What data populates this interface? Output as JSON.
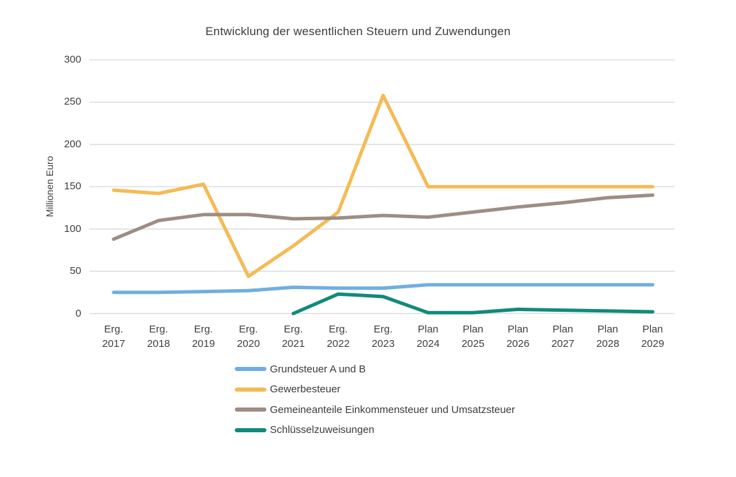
{
  "chart_data": {
    "type": "line",
    "title": "Entwicklung der wesentlichen Steuern und Zuwendungen",
    "xlabel": "",
    "ylabel": "Millionen Euro",
    "ylim": [
      0,
      300
    ],
    "ytick_step": 50,
    "yticks": [
      0,
      50,
      100,
      150,
      200,
      250,
      300
    ],
    "grid": "horizontal-only",
    "gridline_color": "#d9d9d9",
    "legend_position": "bottom-left",
    "categories": [
      "Erg. 2017",
      "Erg. 2018",
      "Erg. 2019",
      "Erg. 2020",
      "Erg. 2021",
      "Erg. 2022",
      "Erg. 2023",
      "Plan 2024",
      "Plan 2025",
      "Plan 2026",
      "Plan 2027",
      "Plan 2028",
      "Plan 2029"
    ],
    "series": [
      {
        "name": "Grundsteuer A und B",
        "color": "#70aee1",
        "values": [
          25,
          25,
          26,
          27,
          31,
          30,
          30,
          34,
          34,
          34,
          34,
          34,
          34
        ]
      },
      {
        "name": "Gewerbesteuer",
        "color": "#f4bb55",
        "values": [
          146,
          142,
          153,
          44,
          80,
          120,
          258,
          150,
          150,
          150,
          150,
          150,
          150
        ]
      },
      {
        "name": "Gemeineanteile Einkommensteuer und Umsatzsteuer",
        "color": "#9d8d85",
        "values": [
          88,
          110,
          117,
          117,
          112,
          113,
          116,
          114,
          120,
          126,
          131,
          137,
          140
        ]
      },
      {
        "name": "Schlüsselzuweisungen",
        "color": "#118a7b",
        "values": [
          null,
          null,
          null,
          null,
          0,
          23,
          20,
          1,
          1,
          5,
          4,
          3,
          2
        ]
      }
    ]
  }
}
